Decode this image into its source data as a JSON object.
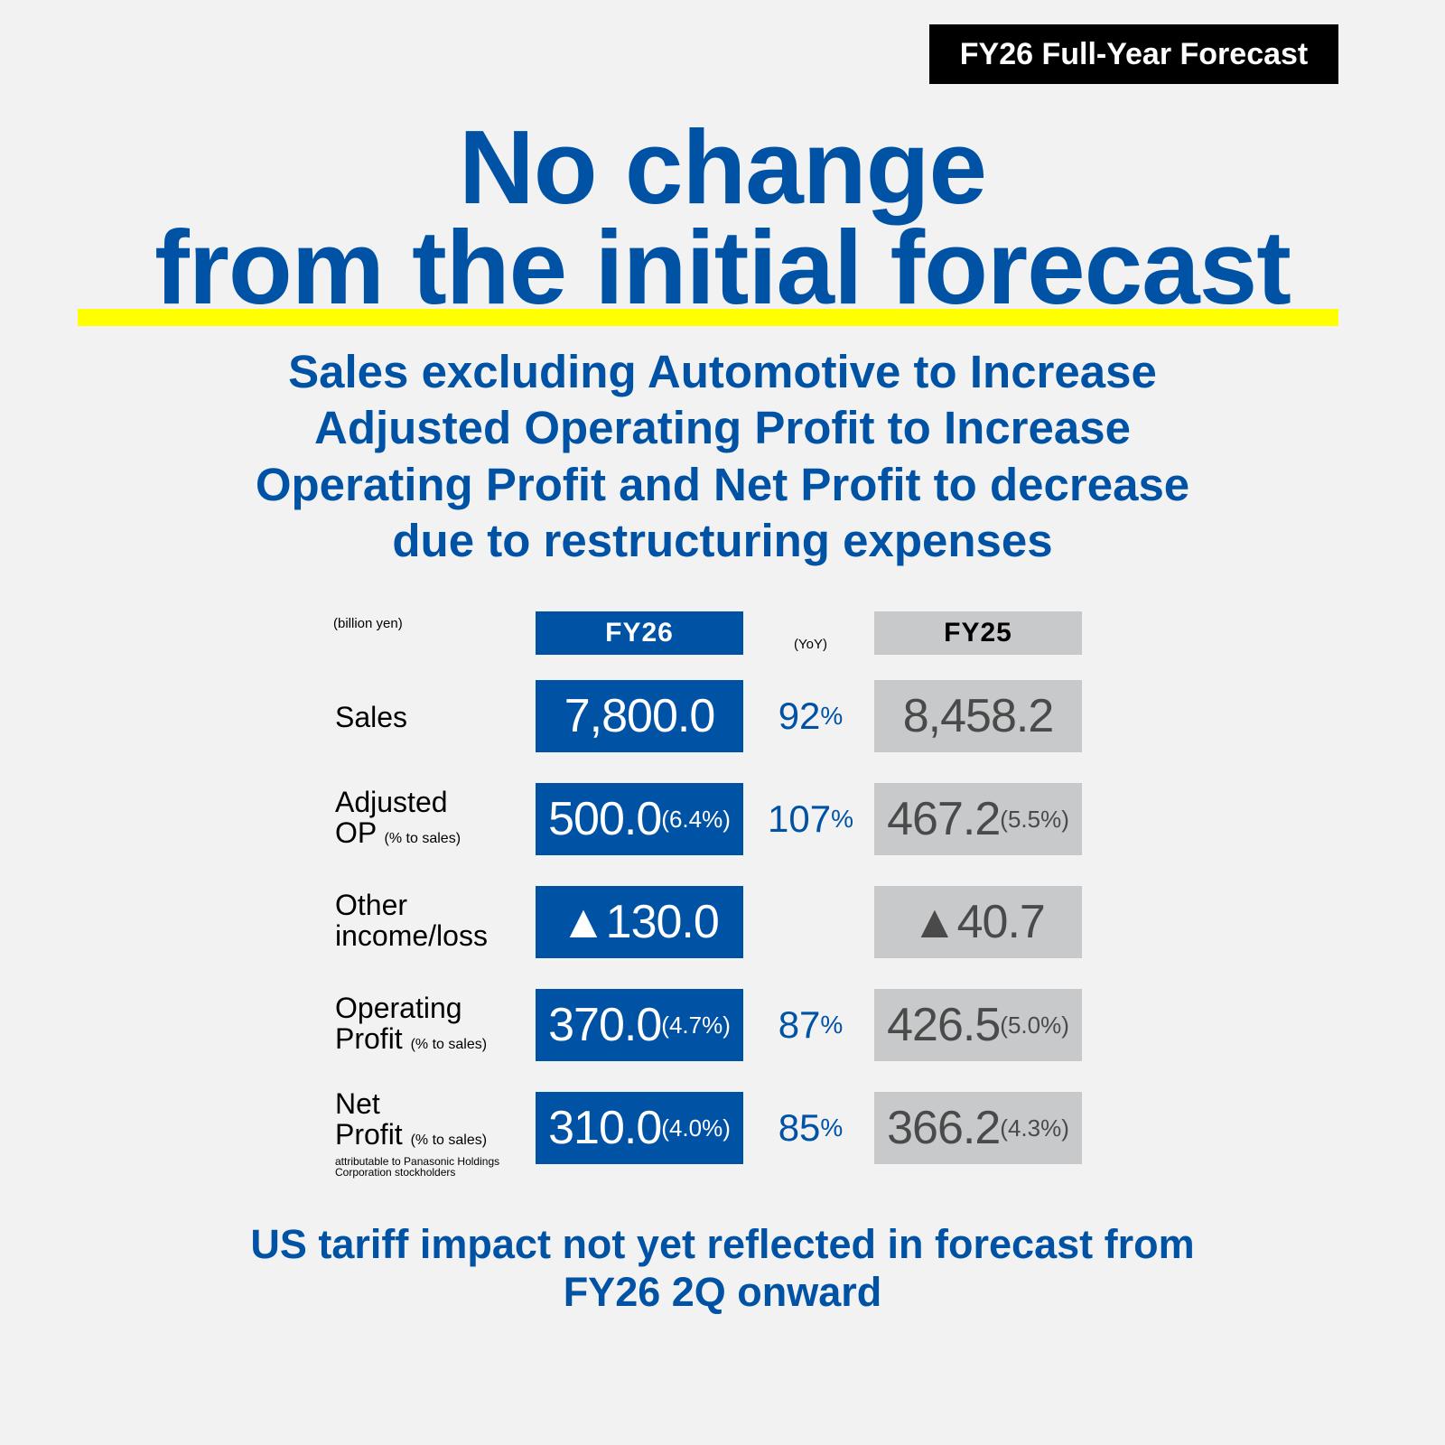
{
  "badge": "FY26 Full-Year Forecast",
  "headline": {
    "line1": "No change",
    "line2": "from the initial forecast"
  },
  "subheadlines": [
    "Sales excluding Automotive to Increase",
    "Adjusted Operating Profit to Increase",
    "Operating Profit and Net Profit to decrease",
    "due to restructuring expenses"
  ],
  "table": {
    "unit": "(billion yen)",
    "col_fy26": "FY26",
    "col_yoy": "(YoY)",
    "col_fy25": "FY25",
    "rows": [
      {
        "label1": "Sales",
        "label2": "",
        "sub": "",
        "fy26": "7,800.0",
        "fy26_pct": "",
        "yoy": "92",
        "fy25": "8,458.2",
        "fy25_pct": ""
      },
      {
        "label1": "Adjusted",
        "label2": "OP",
        "sub": "(% to sales)",
        "fy26": "500.0",
        "fy26_pct": "(6.4%)",
        "yoy": "107",
        "fy25": "467.2",
        "fy25_pct": "(5.5%)"
      },
      {
        "label1": "Other",
        "label2": "income/loss",
        "sub": "",
        "fy26": "▲130.0",
        "fy26_pct": "",
        "yoy": "",
        "fy25": "▲40.7",
        "fy25_pct": ""
      },
      {
        "label1": "Operating",
        "label2": "Profit",
        "sub": "(% to sales)",
        "fy26": "370.0",
        "fy26_pct": "(4.7%)",
        "yoy": "87",
        "fy25": "426.5",
        "fy25_pct": "(5.0%)"
      },
      {
        "label1": "Net",
        "label2": "Profit",
        "sub": "(% to sales)",
        "note1": "attributable to Panasonic Holdings",
        "note2": "Corporation stockholders",
        "fy26": "310.0",
        "fy26_pct": "(4.0%)",
        "yoy": "85",
        "fy25": "366.2",
        "fy25_pct": "(4.3%)"
      }
    ],
    "pct_sign": "%"
  },
  "footer": [
    "US tariff impact not yet reflected in forecast from",
    "FY26 2Q onward"
  ],
  "colors": {
    "blue": "#0052a5",
    "gray": "#c8c9ca",
    "yellow": "#ffff00"
  }
}
